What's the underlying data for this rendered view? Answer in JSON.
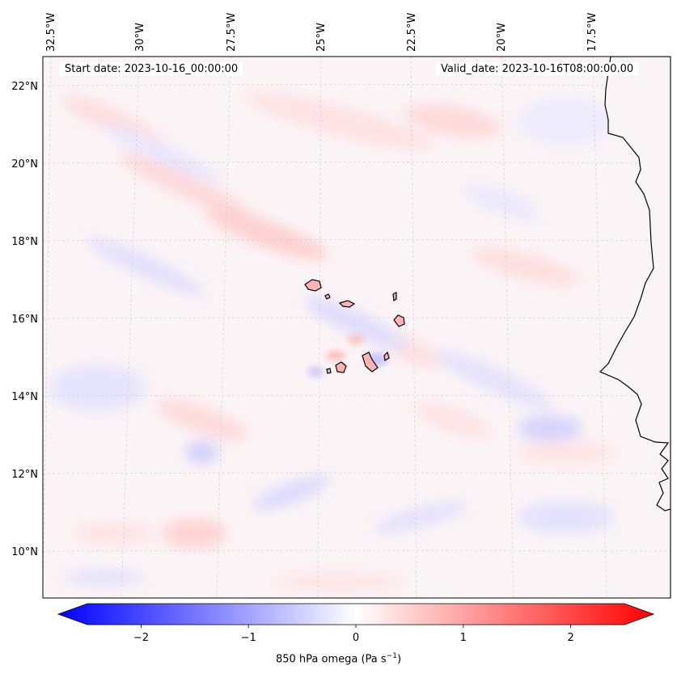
{
  "map": {
    "start_date": "Start date: 2023-10-16_00:00:00",
    "valid_date": "Valid_date: 2023-10-16T08:00:00.00",
    "field": "850 hPa omega",
    "lon_labels": [
      "32.5°W",
      "30°W",
      "27.5°W",
      "25°W",
      "22.5°W",
      "20°W",
      "17.5°W"
    ],
    "lat_labels": [
      "22°N",
      "20°N",
      "18°N",
      "16°N",
      "14°N",
      "12°N",
      "10°N"
    ]
  },
  "colorbar": {
    "label_prefix": "850 hPa omega (Pa s",
    "label_exp": "−1",
    "label_suffix": ")",
    "ticks": [
      "−2",
      "−1",
      "0",
      "1",
      "2"
    ],
    "tick_values": [
      -2,
      -1,
      0,
      1,
      2
    ],
    "range": [
      -2.5,
      2.5
    ],
    "colors": {
      "negative": "#0000ff",
      "zero": "#ffffff",
      "positive": "#ff0000"
    }
  }
}
